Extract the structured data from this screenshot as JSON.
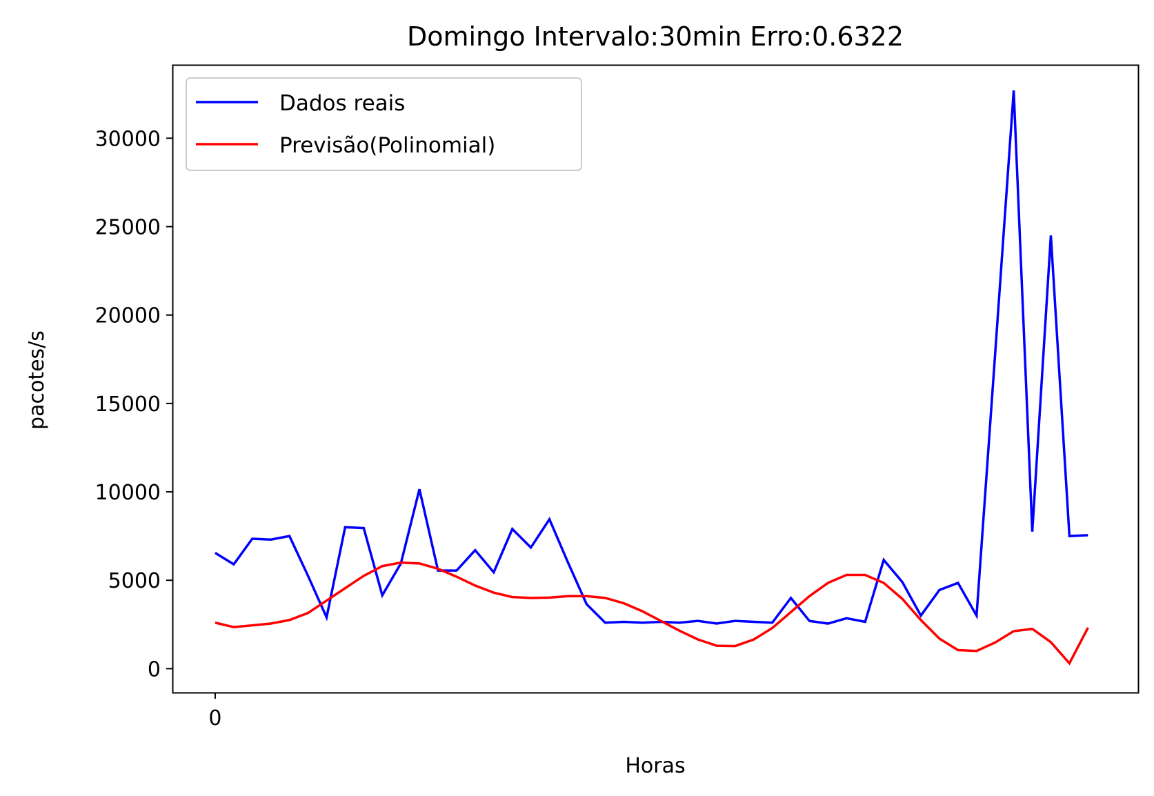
{
  "chart_data": {
    "type": "line",
    "title": "Domingo Intervalo:30min Erro:0.6322",
    "xlabel": "Horas",
    "ylabel": "pacotes/s",
    "x": [
      0,
      1,
      2,
      3,
      4,
      5,
      6,
      7,
      8,
      9,
      10,
      11,
      12,
      13,
      14,
      15,
      16,
      17,
      18,
      19,
      20,
      21,
      22,
      23,
      24,
      25,
      26,
      27,
      28,
      29,
      30,
      31,
      32,
      33,
      34,
      35,
      36,
      37,
      38,
      39,
      40,
      41,
      42,
      43,
      44,
      45,
      46,
      47
    ],
    "xticks": [
      0
    ],
    "xtick_labels": [
      "0"
    ],
    "yticks": [
      0,
      5000,
      10000,
      15000,
      20000,
      25000,
      30000
    ],
    "ytick_labels": [
      "0",
      "5000",
      "10000",
      "15000",
      "20000",
      "25000",
      "30000"
    ],
    "xlim": [
      -2.3,
      49.7
    ],
    "ylim": [
      -1350,
      34150
    ],
    "legend_position": "upper left",
    "series": [
      {
        "name": "Dados reais",
        "color": "#0000ff",
        "values": [
          6550,
          5900,
          7350,
          7300,
          7500,
          5250,
          2900,
          8000,
          7950,
          4150,
          5950,
          10150,
          5550,
          5550,
          6700,
          5450,
          7900,
          6850,
          8450,
          6000,
          3650,
          2600,
          2650,
          2600,
          2650,
          2600,
          2700,
          2550,
          2700,
          2650,
          2600,
          4000,
          2700,
          2550,
          2850,
          2650,
          6150,
          4900,
          3000,
          4450,
          4850,
          3000,
          17800,
          32700,
          7750,
          24500,
          7500,
          7550
        ]
      },
      {
        "name": "Previsão(Polinomial)",
        "color": "#ff0000",
        "values": [
          2600,
          2350,
          2450,
          2550,
          2750,
          3150,
          3850,
          4550,
          5250,
          5800,
          6000,
          5950,
          5650,
          5200,
          4700,
          4300,
          4050,
          4000,
          4020,
          4100,
          4100,
          4000,
          3700,
          3250,
          2700,
          2150,
          1650,
          1300,
          1280,
          1650,
          2300,
          3200,
          4100,
          4850,
          5300,
          5300,
          4850,
          3950,
          2750,
          1700,
          1050,
          1000,
          1480,
          2120,
          2250,
          1500,
          300,
          2320
        ]
      }
    ]
  }
}
